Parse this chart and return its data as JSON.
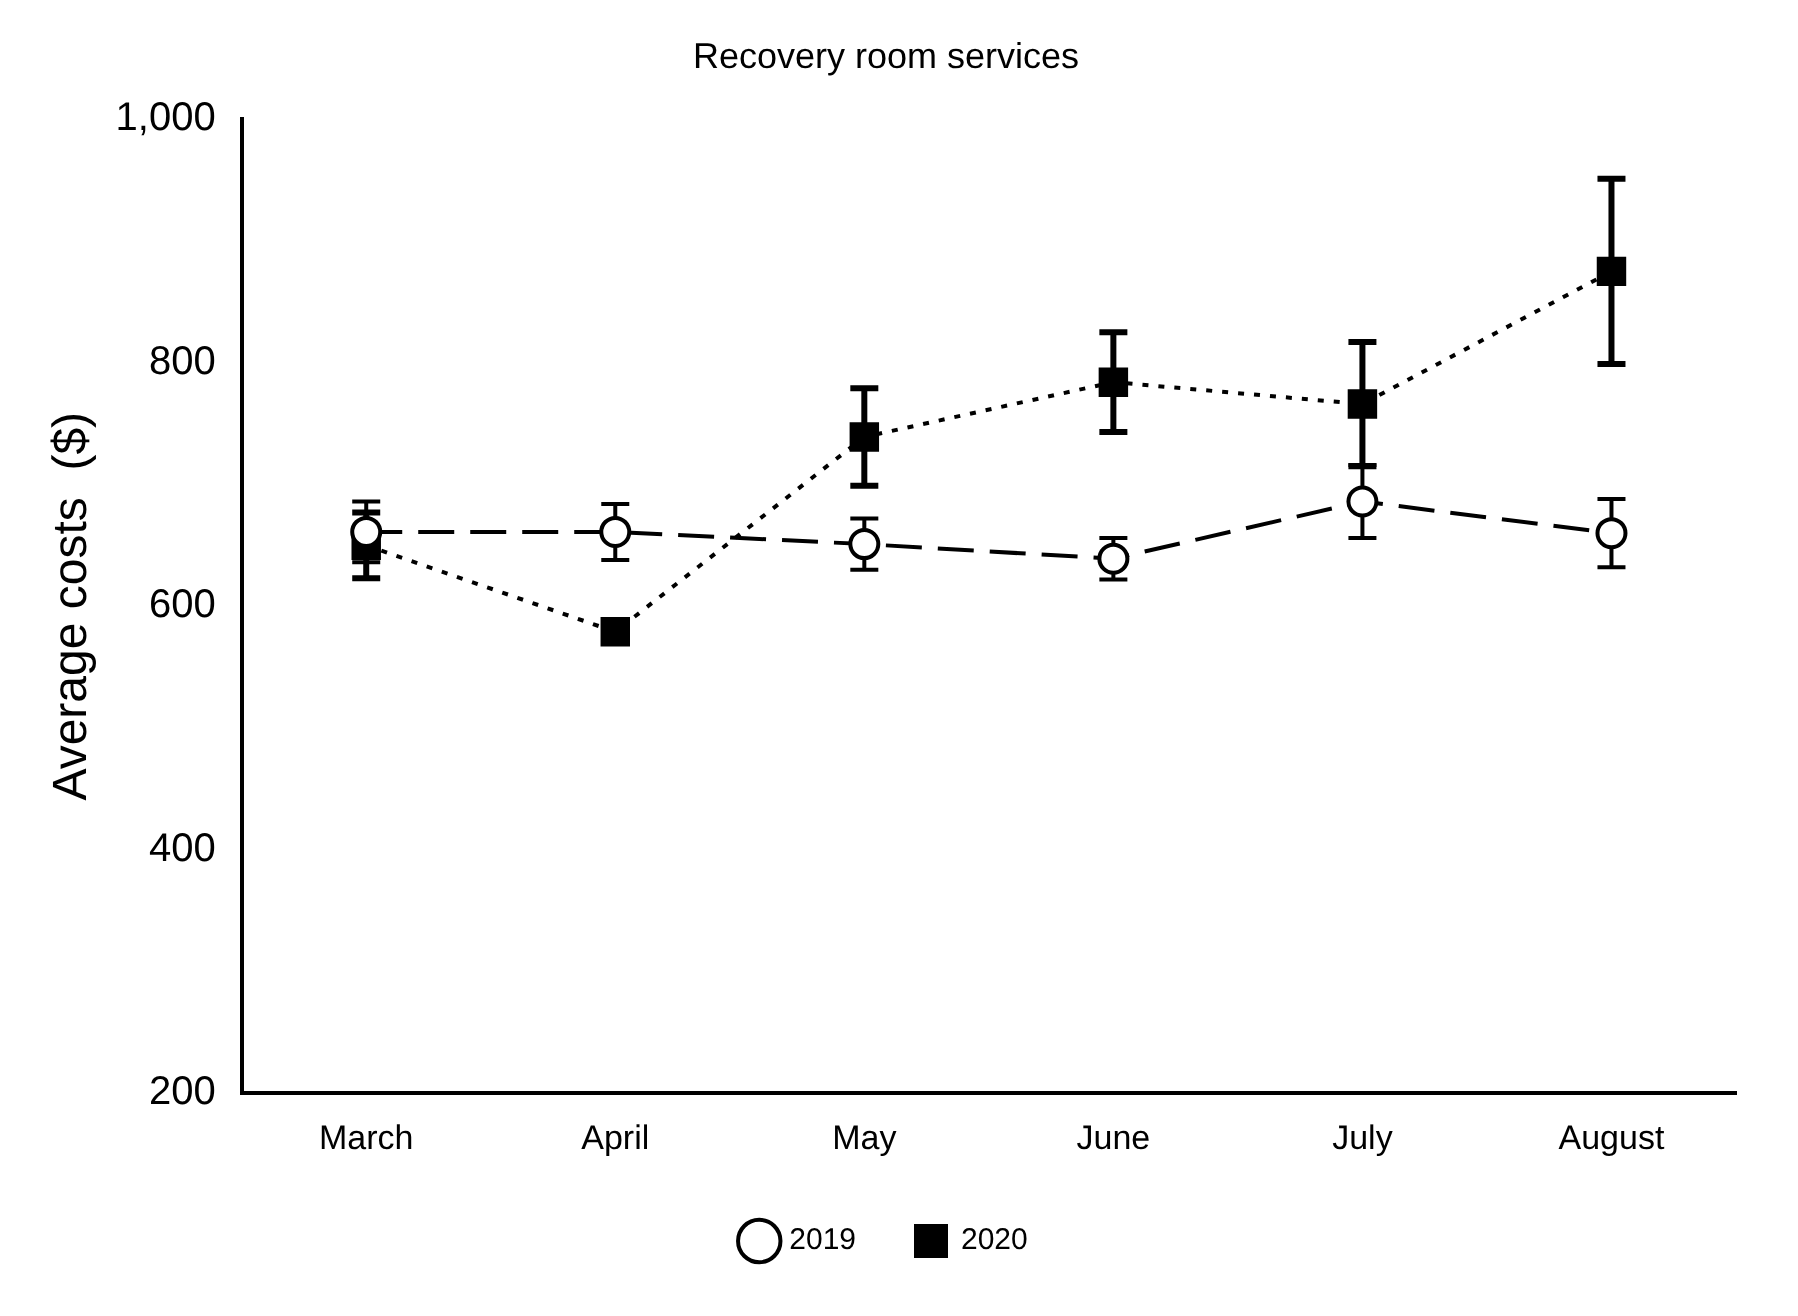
{
  "chart_data": {
    "type": "line",
    "title": "Recovery room services",
    "ylabel": "Average costs  ($)",
    "categories": [
      "March",
      "April",
      "May",
      "June",
      "July",
      "August"
    ],
    "ylim": [
      200,
      1000
    ],
    "yticks": [
      200,
      400,
      600,
      800,
      {
        "value": 1000,
        "label": "1,000"
      }
    ],
    "grid": false,
    "legend": "bottom",
    "series": [
      {
        "name": "2019",
        "color": "#000000",
        "marker": "circle",
        "line_style": "dashed",
        "values": [
          661,
          661,
          651,
          639,
          686,
          660
        ],
        "errors": [
          25,
          23,
          21,
          17,
          30,
          28
        ]
      },
      {
        "name": "2020",
        "color": "#000000",
        "marker": "square",
        "line_style": "dotted",
        "values": [
          650,
          579,
          739,
          784,
          766,
          875
        ],
        "errors": [
          27,
          null,
          40,
          41,
          51,
          76
        ]
      }
    ]
  }
}
